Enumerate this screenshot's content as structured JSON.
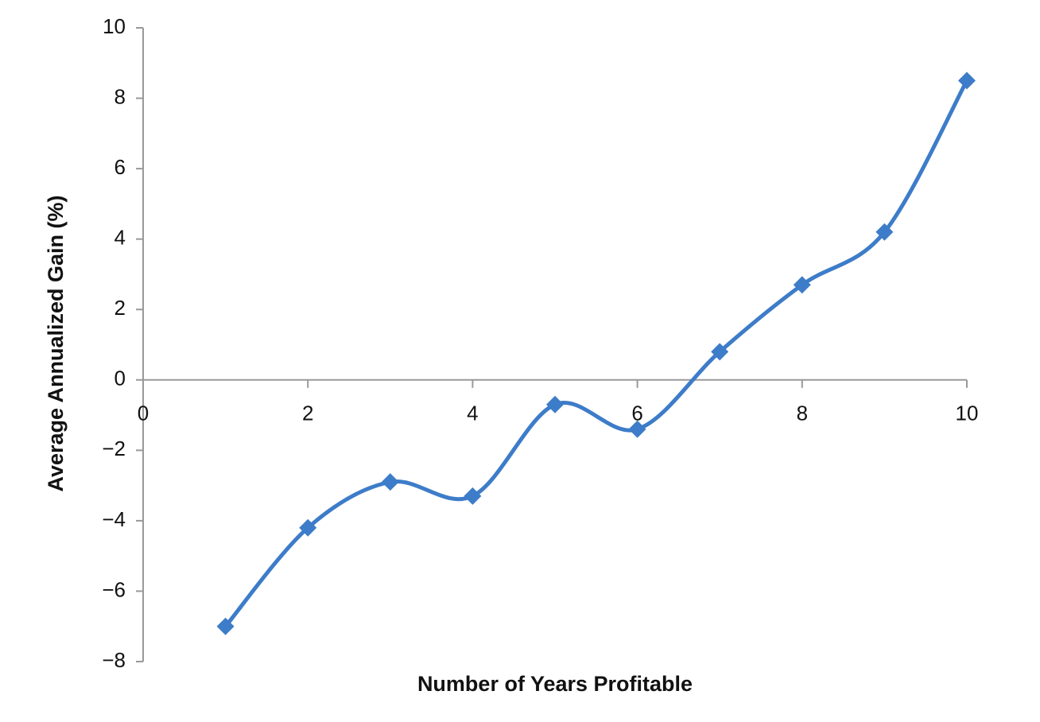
{
  "chart_data": {
    "type": "line",
    "xlabel": "Number of Years Profitable",
    "ylabel": "Average Annualized Gain (%)",
    "x": [
      1,
      2,
      3,
      4,
      5,
      6,
      7,
      8,
      9,
      10
    ],
    "series": [
      {
        "color": "#3d7cc9",
        "values": [
          -7,
          -4.2,
          -2.9,
          -3.3,
          -0.7,
          -1.4,
          0.8,
          2.7,
          4.2,
          8.5
        ]
      }
    ],
    "smooth": true,
    "xlim": [
      0,
      10
    ],
    "xticks": [
      0,
      2,
      4,
      6,
      8,
      10
    ],
    "ylim": [
      -8,
      10
    ],
    "yticks": [
      {
        "value": -8,
        "label": "−8"
      },
      {
        "value": -6,
        "label": "−6"
      },
      {
        "value": -4,
        "label": "−4"
      },
      {
        "value": -2,
        "label": "−2"
      },
      0,
      2,
      4,
      6,
      8,
      10
    ]
  }
}
